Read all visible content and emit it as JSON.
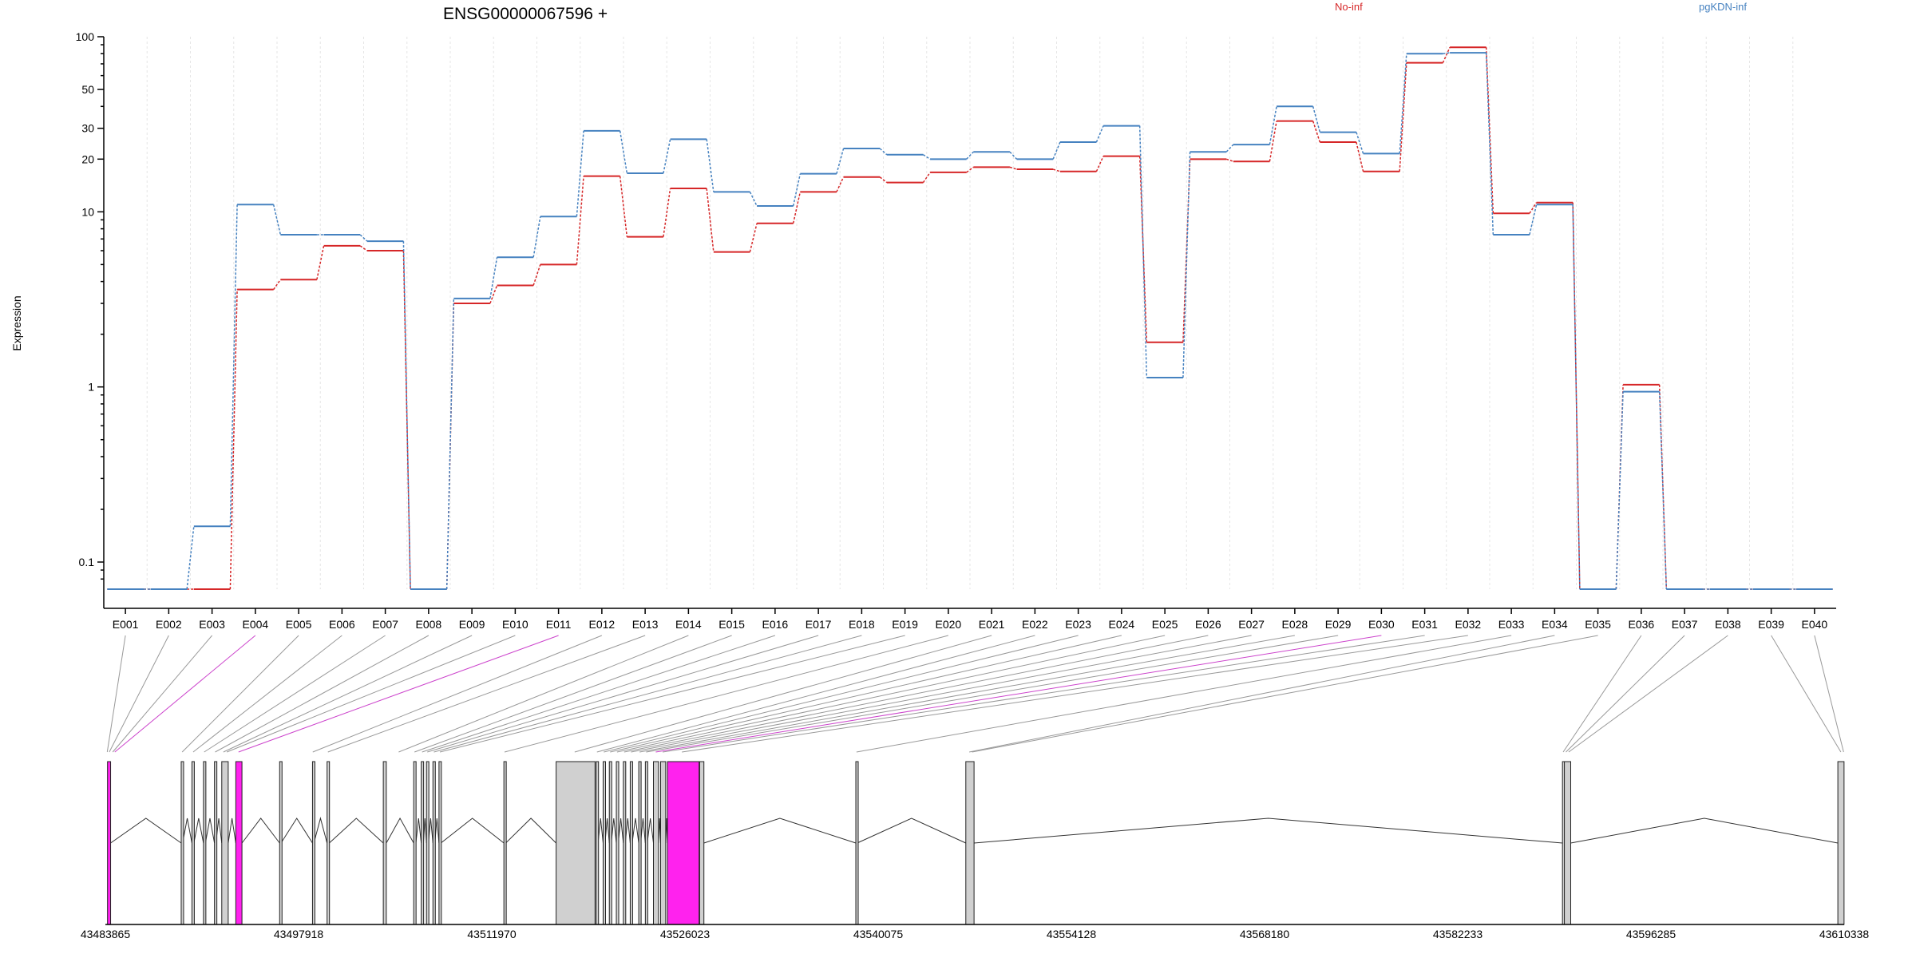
{
  "chart_data": {
    "type": "line",
    "title": "ENSG00000067596 +",
    "ylabel": "Expression",
    "yscale": "log",
    "yrange": [
      0.07,
      100
    ],
    "yticks": [
      {
        "v": 100,
        "label": "100"
      },
      {
        "v": 50,
        "label": "50"
      },
      {
        "v": 30,
        "label": "30"
      },
      {
        "v": 20,
        "label": "20"
      },
      {
        "v": 10,
        "label": "10"
      },
      {
        "v": 1,
        "label": "1"
      },
      {
        "v": 0.1,
        "label": "0.1"
      }
    ],
    "legend_position": "top",
    "categories": [
      "E001",
      "E002",
      "E003",
      "E004",
      "E005",
      "E006",
      "E007",
      "E008",
      "E009",
      "E010",
      "E011",
      "E012",
      "E013",
      "E014",
      "E015",
      "E016",
      "E017",
      "E018",
      "E019",
      "E020",
      "E021",
      "E022",
      "E023",
      "E024",
      "E025",
      "E026",
      "E027",
      "E028",
      "E029",
      "E030",
      "E031",
      "E032",
      "E033",
      "E034",
      "E035",
      "E036",
      "E037",
      "E038",
      "E039",
      "E040"
    ],
    "series": [
      {
        "name": "No-inf",
        "color": "#d62728",
        "values": [
          0.07,
          0.07,
          0.07,
          3.6,
          4.1,
          6.4,
          6,
          0.07,
          3,
          3.8,
          5,
          16,
          7.2,
          13.6,
          5.9,
          8.6,
          13,
          15.8,
          14.7,
          16.8,
          18,
          17.5,
          17,
          20.8,
          1.8,
          20,
          19.4,
          33,
          25,
          17,
          71,
          87,
          9.8,
          11.3,
          0.07,
          1.03,
          0.07,
          0.07,
          0.07,
          0.07
        ]
      },
      {
        "name": "pgKDN-inf",
        "color": "#4682c0",
        "values": [
          0.07,
          0.07,
          0.16,
          11,
          7.4,
          7.4,
          6.8,
          0.07,
          3.2,
          5.5,
          9.4,
          29,
          16.6,
          26,
          13,
          10.8,
          16.5,
          23,
          21.2,
          20,
          22,
          20,
          25,
          31,
          1.13,
          22,
          24.2,
          40,
          28.5,
          21.5,
          80,
          81,
          7.4,
          11,
          0.07,
          0.94,
          0.07,
          0.07,
          0.07,
          0.07
        ]
      }
    ],
    "genomic_axis": {
      "start": 43483865,
      "end": 43610338,
      "tick_labels": [
        "43483865",
        "43497918",
        "43511970",
        "43526023",
        "43540075",
        "43554128",
        "43568180",
        "43582233",
        "43596285",
        "43610338"
      ]
    },
    "gene_model": {
      "exons": [
        {
          "start": 43484020,
          "end": 43484245,
          "highlight": true
        },
        {
          "start": 43489380,
          "end": 43489480
        },
        {
          "start": 43490160,
          "end": 43490300
        },
        {
          "start": 43491000,
          "end": 43491140
        },
        {
          "start": 43491800,
          "end": 43491900
        },
        {
          "start": 43492330,
          "end": 43492800
        },
        {
          "start": 43493350,
          "end": 43493800,
          "highlight": true
        },
        {
          "start": 43496540,
          "end": 43496640
        },
        {
          "start": 43498930,
          "end": 43499030
        },
        {
          "start": 43499990,
          "end": 43500150
        },
        {
          "start": 43504080,
          "end": 43504300
        },
        {
          "start": 43506290,
          "end": 43506450
        },
        {
          "start": 43506840,
          "end": 43507000
        },
        {
          "start": 43507220,
          "end": 43507360
        },
        {
          "start": 43507690,
          "end": 43507830
        },
        {
          "start": 43508130,
          "end": 43508270
        },
        {
          "start": 43512850,
          "end": 43512990
        },
        {
          "start": 43516650,
          "end": 43519480
        },
        {
          "start": 43519560,
          "end": 43519700
        },
        {
          "start": 43520070,
          "end": 43520210
        },
        {
          "start": 43520520,
          "end": 43520660
        },
        {
          "start": 43521030,
          "end": 43521170
        },
        {
          "start": 43521540,
          "end": 43521680
        },
        {
          "start": 43522040,
          "end": 43522180
        },
        {
          "start": 43522660,
          "end": 43522800
        },
        {
          "start": 43523140,
          "end": 43523280
        },
        {
          "start": 43523730,
          "end": 43524100
        },
        {
          "start": 43524250,
          "end": 43524620
        },
        {
          "start": 43524750,
          "end": 43527050,
          "highlight": true
        },
        {
          "start": 43527090,
          "end": 43527400
        },
        {
          "start": 43538450,
          "end": 43538550
        },
        {
          "start": 43546450,
          "end": 43547050
        },
        {
          "start": 43589850,
          "end": 43589940
        },
        {
          "start": 43589990,
          "end": 43590450
        },
        {
          "start": 43609880,
          "end": 43610330
        }
      ],
      "links": [
        {
          "exon": 0,
          "pos": 43484000
        },
        {
          "exon": 1,
          "pos": 43484150
        },
        {
          "exon": 2,
          "pos": 43484400
        },
        {
          "exon": 3,
          "pos": 43484550,
          "highlight": true
        },
        {
          "exon": 4,
          "pos": 43489450
        },
        {
          "exon": 5,
          "pos": 43490250
        },
        {
          "exon": 6,
          "pos": 43491050
        },
        {
          "exon": 7,
          "pos": 43491850
        },
        {
          "exon": 8,
          "pos": 43492450
        },
        {
          "exon": 9,
          "pos": 43492700
        },
        {
          "exon": 10,
          "pos": 43493550,
          "highlight": true
        },
        {
          "exon": 11,
          "pos": 43498950
        },
        {
          "exon": 12,
          "pos": 43500050
        },
        {
          "exon": 13,
          "pos": 43505200
        },
        {
          "exon": 14,
          "pos": 43506350
        },
        {
          "exon": 15,
          "pos": 43506900
        },
        {
          "exon": 16,
          "pos": 43507280
        },
        {
          "exon": 17,
          "pos": 43507760
        },
        {
          "exon": 18,
          "pos": 43508200
        },
        {
          "exon": 19,
          "pos": 43512900
        },
        {
          "exon": 20,
          "pos": 43518000
        },
        {
          "exon": 21,
          "pos": 43519620
        },
        {
          "exon": 22,
          "pos": 43520120
        },
        {
          "exon": 23,
          "pos": 43520580
        },
        {
          "exon": 24,
          "pos": 43521080
        },
        {
          "exon": 25,
          "pos": 43521600
        },
        {
          "exon": 26,
          "pos": 43522100
        },
        {
          "exon": 27,
          "pos": 43522720
        },
        {
          "exon": 28,
          "pos": 43523200
        },
        {
          "exon": 29,
          "pos": 43523900,
          "highlight": true
        },
        {
          "exon": 30,
          "pos": 43524400
        },
        {
          "exon": 31,
          "pos": 43525800
        },
        {
          "exon": 32,
          "pos": 43538500
        },
        {
          "exon": 33,
          "pos": 43546700
        },
        {
          "exon": 34,
          "pos": 43546900
        },
        {
          "exon": 35,
          "pos": 43589900
        },
        {
          "exon": 36,
          "pos": 43590100
        },
        {
          "exon": 37,
          "pos": 43590300
        },
        {
          "exon": 38,
          "pos": 43610100
        },
        {
          "exon": 39,
          "pos": 43610300
        }
      ]
    }
  }
}
